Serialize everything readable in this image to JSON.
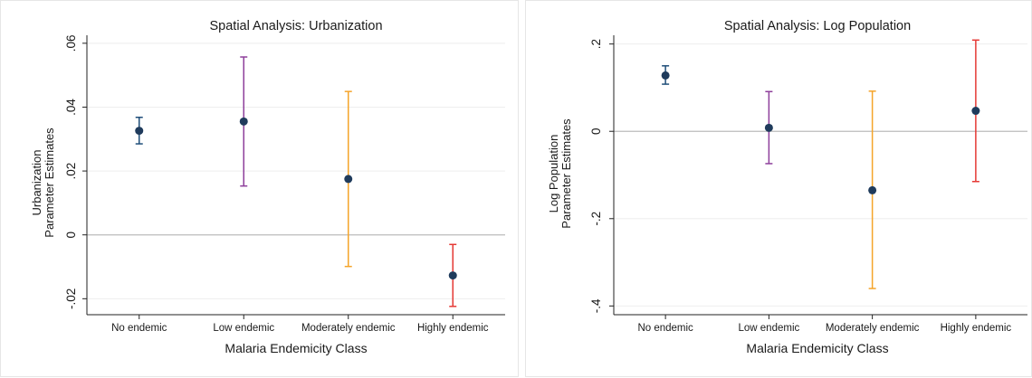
{
  "chart_data": [
    {
      "type": "scatter",
      "title": "Spatial Analysis: Urbanization",
      "xlabel": "Malaria Endemicity Class",
      "ylabel": [
        "Urbanization",
        "Parameter Estimates"
      ],
      "categories": [
        "No endemic",
        "Low endemic",
        "Moderately endemic",
        "Highly endemic"
      ],
      "yticks": [
        -0.02,
        0,
        0.02,
        0.04,
        0.06
      ],
      "ytick_labels": [
        "-.02",
        "0",
        ".02",
        ".04",
        ".06"
      ],
      "ylim": [
        -0.025,
        0.0625
      ],
      "reference_line": 0,
      "grid": true,
      "points": [
        {
          "category": "No endemic",
          "estimate": 0.0326,
          "ci_low": 0.0285,
          "ci_high": 0.0368,
          "color": "#1f4e79"
        },
        {
          "category": "Low endemic",
          "estimate": 0.0355,
          "ci_low": 0.0153,
          "ci_high": 0.0557,
          "color": "#8e3f9b"
        },
        {
          "category": "Moderately endemic",
          "estimate": 0.0175,
          "ci_low": -0.0099,
          "ci_high": 0.0449,
          "color": "#f5a42a"
        },
        {
          "category": "Highly endemic",
          "estimate": -0.0127,
          "ci_low": -0.0224,
          "ci_high": -0.003,
          "color": "#e53935"
        }
      ]
    },
    {
      "type": "scatter",
      "title": "Spatial Analysis: Log Population",
      "xlabel": "Malaria Endemicity Class",
      "ylabel": [
        "Log Population",
        "Parameter Estimates"
      ],
      "categories": [
        "No endemic",
        "Low endemic",
        "Moderately endemic",
        "Highly endemic"
      ],
      "yticks": [
        -0.4,
        -0.2,
        0,
        0.2
      ],
      "ytick_labels": [
        "-.4",
        "-.2",
        "0",
        ".2"
      ],
      "ylim": [
        -0.42,
        0.22
      ],
      "reference_line": 0,
      "grid": true,
      "points": [
        {
          "category": "No endemic",
          "estimate": 0.128,
          "ci_low": 0.108,
          "ci_high": 0.15,
          "color": "#1f4e79"
        },
        {
          "category": "Low endemic",
          "estimate": 0.008,
          "ci_low": -0.074,
          "ci_high": 0.091,
          "color": "#8e3f9b"
        },
        {
          "category": "Moderately endemic",
          "estimate": -0.135,
          "ci_low": -0.36,
          "ci_high": 0.092,
          "color": "#f5a42a"
        },
        {
          "category": "Highly endemic",
          "estimate": 0.047,
          "ci_low": -0.115,
          "ci_high": 0.209,
          "color": "#e53935"
        }
      ]
    }
  ],
  "marker_color": "#1f3b5c"
}
